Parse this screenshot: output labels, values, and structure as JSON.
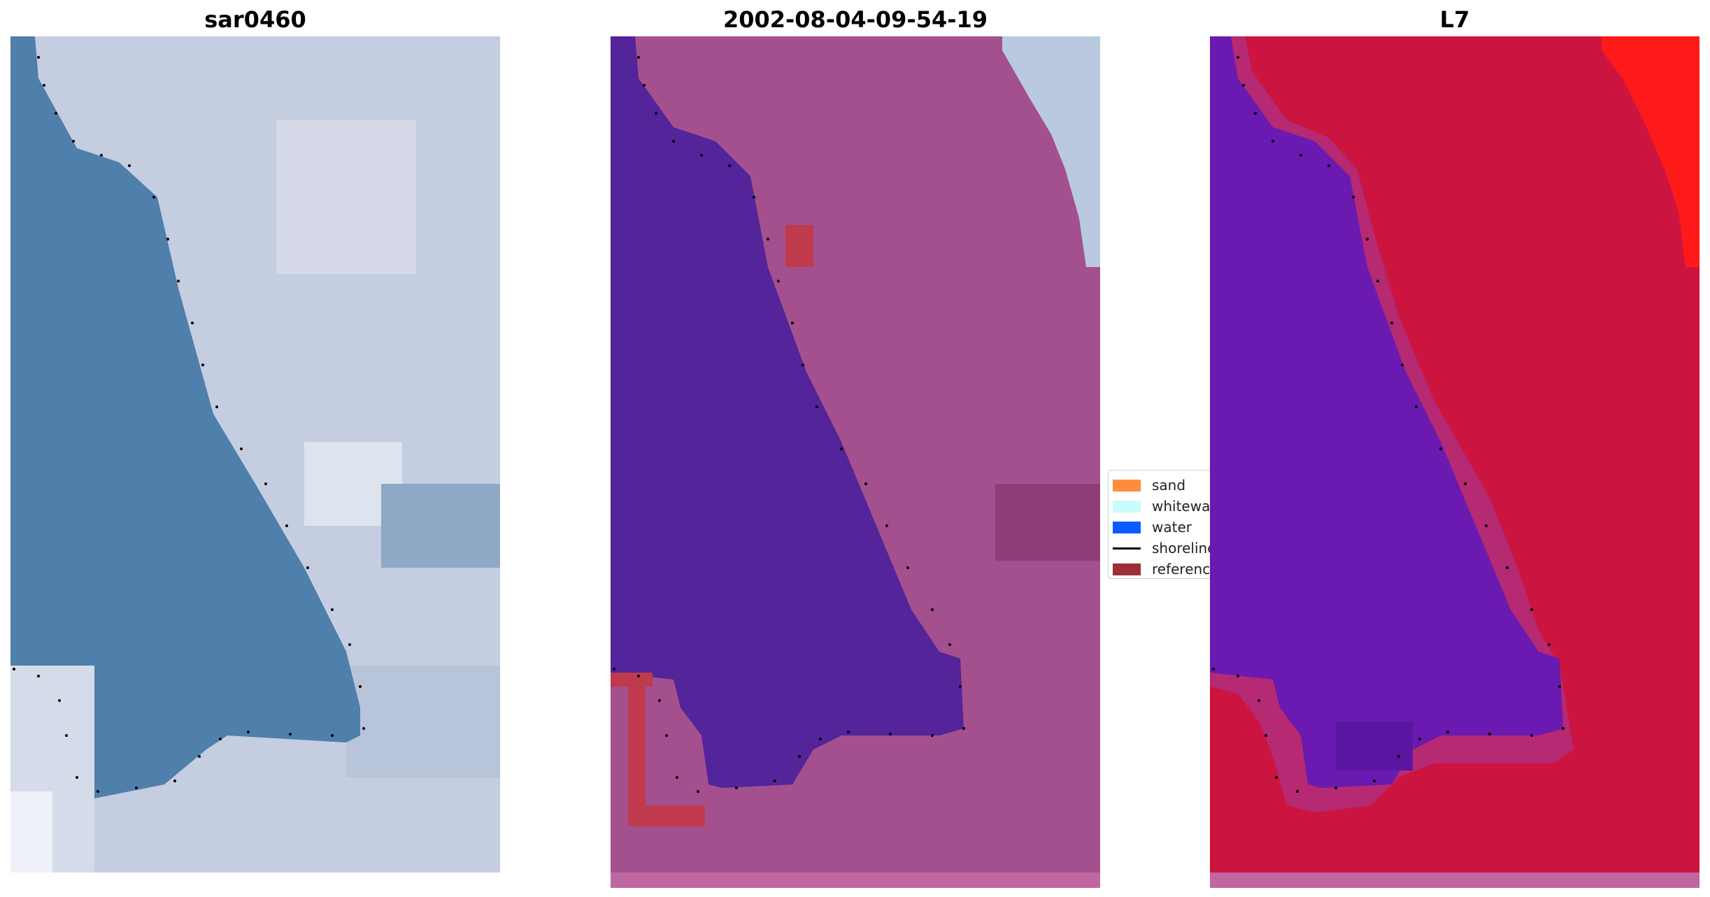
{
  "figure": {
    "panels": [
      {
        "id": "panel-1",
        "title": "sar0460",
        "kind": "rgb"
      },
      {
        "id": "panel-2",
        "title": "2002-08-04-09-54-19",
        "kind": "classified"
      },
      {
        "id": "panel-3",
        "title": "L7",
        "kind": "index"
      }
    ]
  },
  "legend": {
    "items": [
      {
        "label": "sand",
        "type": "patch",
        "color": "#ff8c3c"
      },
      {
        "label": "whitewater",
        "type": "patch",
        "color": "#c9fbff"
      },
      {
        "label": "water",
        "type": "patch",
        "color": "#0a5cff"
      },
      {
        "label": "shoreline",
        "type": "line",
        "color": "#000000"
      },
      {
        "label": "reference",
        "type": "patch",
        "color": "#9e2f36"
      }
    ]
  },
  "colors": {
    "panel1_water": "#4f7fab",
    "panel1_land": "#c7cee0",
    "panel2_water": "#53249a",
    "panel2_land": "#a4508e",
    "panel2_reference": "#bf3a4d",
    "panel3_water": "#6a1ab0",
    "panel3_land": "#cc1440",
    "panel3_hot": "#ff1a1a",
    "dots": "#000000"
  }
}
